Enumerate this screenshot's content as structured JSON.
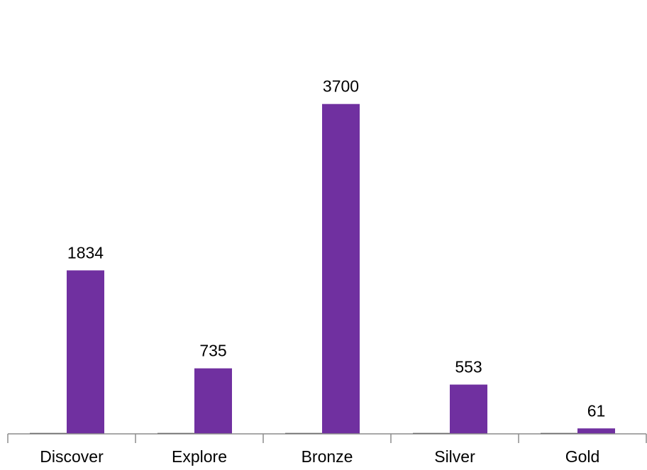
{
  "chart_data": {
    "type": "bar",
    "categories": [
      "Discover",
      "Explore",
      "Bronze",
      "Silver",
      "Gold"
    ],
    "series": [
      {
        "values": [
          0,
          0,
          0,
          0,
          0
        ],
        "color": "#1a1a1a"
      },
      {
        "values": [
          1834,
          735,
          3700,
          553,
          61
        ],
        "color": "#7030A0"
      }
    ],
    "data_labels": [
      "1834",
      "735",
      "3700",
      "553",
      "61"
    ],
    "title": "",
    "xlabel": "",
    "ylabel": "",
    "ylim": [
      0,
      4000
    ],
    "grid": false,
    "legend": "none"
  }
}
